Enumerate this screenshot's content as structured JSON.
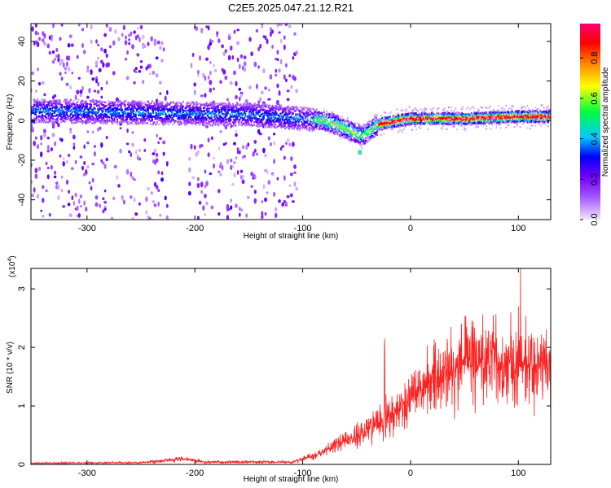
{
  "title": "C2E5.2025.047.21.12.R21",
  "chart_data": [
    {
      "type": "heatmap",
      "xlabel": "Height of straight line (km)",
      "ylabel": "Frequency (Hz)",
      "xlim": [
        -352,
        130
      ],
      "ylim": [
        -50,
        49
      ],
      "xticks": [
        -300,
        -200,
        -100,
        0,
        100
      ],
      "yticks": [
        -40,
        -20,
        0,
        20,
        40
      ],
      "colorbar": {
        "label": "Normalized spectral amplitude",
        "range": [
          0,
          0.97
        ],
        "ticks": [
          "0.0",
          "0.2",
          "0.4",
          "0.6",
          "0.8"
        ],
        "colors": [
          "#f0e6fb",
          "#7000ff",
          "#0000ff",
          "#00c8ff",
          "#00ff40",
          "#ffff00",
          "#ff8000",
          "#ff0000",
          "#ff0070"
        ]
      },
      "ridge": {
        "description_points": [
          {
            "x": -350,
            "y": 5
          },
          {
            "x": -250,
            "y": 4
          },
          {
            "x": -150,
            "y": 3
          },
          {
            "x": -80,
            "y": 0
          },
          {
            "x": -60,
            "y": -4
          },
          {
            "x": -45,
            "y": -8
          },
          {
            "x": -30,
            "y": -2
          },
          {
            "x": 0,
            "y": 1
          },
          {
            "x": 50,
            "y": 1
          },
          {
            "x": 100,
            "y": 2
          },
          {
            "x": 130,
            "y": 2
          }
        ],
        "outlier": {
          "x": -47,
          "y": -16
        }
      }
    },
    {
      "type": "line",
      "xlabel": "Height of straight line (km)",
      "ylabel": "SNR (10 * v/v)",
      "yscale_label": "(x10",
      "yscale_exp": "4",
      "yscale_suffix": ")",
      "xlim": [
        -352,
        130
      ],
      "ylim": [
        0,
        3.35
      ],
      "xticks": [
        -300,
        -200,
        -100,
        0,
        100
      ],
      "yticks": [
        0,
        1,
        2,
        3
      ],
      "color": "#ff2020",
      "envelope": [
        {
          "x": -352,
          "y": 0.02
        },
        {
          "x": -250,
          "y": 0.03
        },
        {
          "x": -210,
          "y": 0.1
        },
        {
          "x": -190,
          "y": 0.04
        },
        {
          "x": -110,
          "y": 0.04
        },
        {
          "x": -90,
          "y": 0.15
        },
        {
          "x": -60,
          "y": 0.4
        },
        {
          "x": -30,
          "y": 0.7
        },
        {
          "x": 0,
          "y": 1.1
        },
        {
          "x": 20,
          "y": 1.45
        },
        {
          "x": 50,
          "y": 1.7
        },
        {
          "x": 80,
          "y": 1.75
        },
        {
          "x": 100,
          "y": 1.7
        },
        {
          "x": 130,
          "y": 1.6
        }
      ],
      "peaks": [
        {
          "x": -24,
          "y": 2.15
        },
        {
          "x": 102,
          "y": 3.35
        },
        {
          "x": 100,
          "y": 2.7
        },
        {
          "x": 93,
          "y": 2.6
        },
        {
          "x": 52,
          "y": 2.35
        }
      ]
    }
  ]
}
